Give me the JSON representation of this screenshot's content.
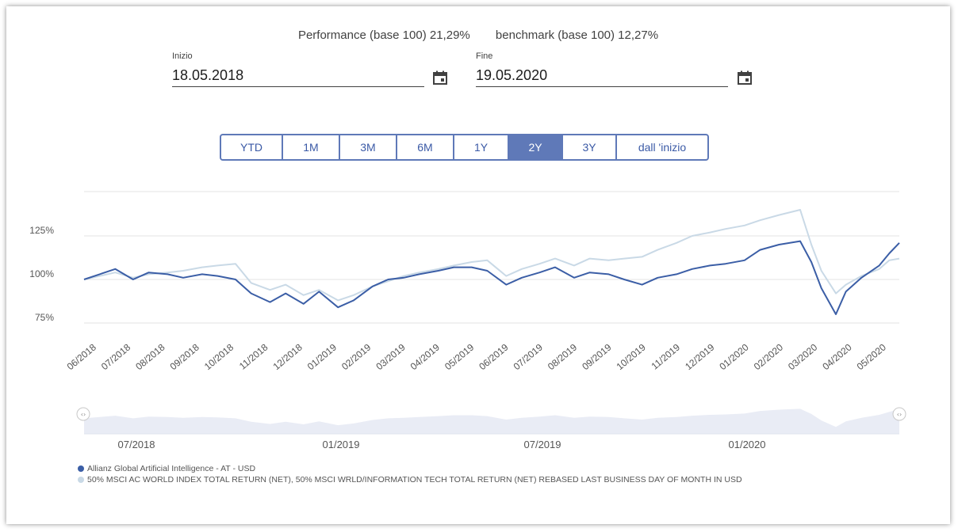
{
  "perf": {
    "fund_text": "Performance (base 100) 21,29%",
    "bench_text": "benchmark (base 100) 12,27%"
  },
  "start": {
    "label": "Inizio",
    "value": "18.05.2018"
  },
  "end": {
    "label": "Fine",
    "value": "19.05.2020"
  },
  "icons": {
    "calendar": "calendar-icon"
  },
  "ranges": [
    "YTD",
    "1M",
    "3M",
    "6M",
    "1Y",
    "2Y",
    "3Y",
    "dall 'inizio"
  ],
  "active_range": "2Y",
  "colors": {
    "fund": "#3b5ea6",
    "benchmark": "#c9d9e6",
    "active": "#5f79b8",
    "navigator": "#e9ecf5"
  },
  "legend": {
    "fund": "Allianz Global Artificial Intelligence - AT - USD",
    "benchmark": "50% MSCI AC WORLD INDEX TOTAL RETURN (NET), 50% MSCI WRLD/INFORMATION TECH TOTAL RETURN (NET) REBASED LAST BUSINESS DAY OF MONTH IN USD"
  },
  "chart_data": {
    "type": "line",
    "y_ticks": [
      "125%",
      "100%",
      "75%"
    ],
    "y_tick_values": [
      125,
      100,
      75
    ],
    "ylim": [
      75,
      150
    ],
    "x_labels": [
      "06/2018",
      "07/2018",
      "08/2018",
      "09/2018",
      "10/2018",
      "11/2018",
      "12/2018",
      "01/2019",
      "02/2019",
      "03/2019",
      "04/2019",
      "05/2019",
      "06/2019",
      "07/2019",
      "08/2019",
      "09/2019",
      "10/2019",
      "11/2019",
      "12/2019",
      "01/2020",
      "02/2020",
      "03/2020",
      "04/2020",
      "05/2020"
    ],
    "navigator_labels": [
      "07/2018",
      "01/2019",
      "07/2019",
      "01/2020"
    ],
    "grid": true,
    "legend_position": "bottom-left",
    "series": [
      {
        "name": "Allianz Global Artificial Intelligence - AT - USD",
        "x": [
          "2018-05-18",
          "2018-06-01",
          "2018-06-15",
          "2018-07-01",
          "2018-07-15",
          "2018-08-01",
          "2018-08-15",
          "2018-09-01",
          "2018-09-15",
          "2018-10-01",
          "2018-10-15",
          "2018-11-01",
          "2018-11-15",
          "2018-12-01",
          "2018-12-15",
          "2019-01-01",
          "2019-01-15",
          "2019-02-01",
          "2019-02-15",
          "2019-03-01",
          "2019-03-15",
          "2019-04-01",
          "2019-04-15",
          "2019-05-01",
          "2019-05-15",
          "2019-06-01",
          "2019-06-15",
          "2019-07-01",
          "2019-07-15",
          "2019-08-01",
          "2019-08-15",
          "2019-09-01",
          "2019-09-15",
          "2019-10-01",
          "2019-10-15",
          "2019-11-01",
          "2019-11-15",
          "2019-12-01",
          "2019-12-15",
          "2020-01-01",
          "2020-01-15",
          "2020-02-01",
          "2020-02-20",
          "2020-03-01",
          "2020-03-10",
          "2020-03-23",
          "2020-04-01",
          "2020-04-15",
          "2020-05-01",
          "2020-05-10",
          "2020-05-19"
        ],
        "values": [
          100,
          103,
          106,
          100,
          104,
          103,
          101,
          103,
          102,
          100,
          92,
          87,
          92,
          86,
          93,
          84,
          88,
          96,
          100,
          101,
          103,
          105,
          107,
          107,
          105,
          97,
          101,
          104,
          107,
          101,
          104,
          103,
          100,
          97,
          101,
          103,
          106,
          108,
          109,
          111,
          117,
          120,
          122,
          110,
          95,
          80,
          93,
          101,
          108,
          115,
          121
        ]
      },
      {
        "name": "50% MSCI AC WORLD INDEX TOTAL RETURN (NET), 50% MSCI WRLD/INFORMATION TECH TOTAL RETURN (NET) REBASED LAST BUSINESS DAY OF MONTH IN USD",
        "x": [
          "2018-05-18",
          "2018-06-01",
          "2018-06-15",
          "2018-07-01",
          "2018-07-15",
          "2018-08-01",
          "2018-08-15",
          "2018-09-01",
          "2018-09-15",
          "2018-10-01",
          "2018-10-15",
          "2018-11-01",
          "2018-11-15",
          "2018-12-01",
          "2018-12-15",
          "2019-01-01",
          "2019-01-15",
          "2019-02-01",
          "2019-02-15",
          "2019-03-01",
          "2019-03-15",
          "2019-04-01",
          "2019-04-15",
          "2019-05-01",
          "2019-05-15",
          "2019-06-01",
          "2019-06-15",
          "2019-07-01",
          "2019-07-15",
          "2019-08-01",
          "2019-08-15",
          "2019-09-01",
          "2019-09-15",
          "2019-10-01",
          "2019-10-15",
          "2019-11-01",
          "2019-11-15",
          "2019-12-01",
          "2019-12-15",
          "2020-01-01",
          "2020-01-15",
          "2020-02-01",
          "2020-02-20",
          "2020-03-01",
          "2020-03-10",
          "2020-03-23",
          "2020-04-01",
          "2020-04-15",
          "2020-05-01",
          "2020-05-10",
          "2020-05-19"
        ],
        "values": [
          100,
          102,
          104,
          101,
          103,
          104,
          105,
          107,
          108,
          109,
          98,
          94,
          97,
          91,
          94,
          88,
          91,
          96,
          99,
          102,
          104,
          106,
          108,
          110,
          111,
          102,
          106,
          109,
          112,
          108,
          112,
          111,
          112,
          113,
          117,
          121,
          125,
          127,
          129,
          131,
          134,
          137,
          140,
          120,
          105,
          92,
          97,
          102,
          106,
          111,
          112
        ]
      }
    ]
  }
}
